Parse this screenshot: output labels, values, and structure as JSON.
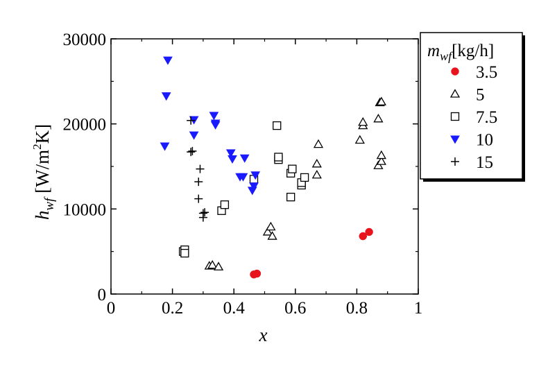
{
  "chart_data": {
    "type": "scatter",
    "title": "",
    "xlabel": "x",
    "ylabel": {
      "main": "h",
      "sub": "wf",
      "unit_open": "[W/m",
      "unit_sup": "2",
      "unit_close": "K]"
    },
    "xlim": [
      0,
      1
    ],
    "ylim": [
      0,
      30000
    ],
    "xticks": [
      0,
      0.2,
      0.4,
      0.6,
      0.8,
      1
    ],
    "xtick_labels": [
      "0",
      "0.2",
      "0.4",
      "0.6",
      "0.8",
      "1"
    ],
    "yticks": [
      0,
      10000,
      20000,
      30000
    ],
    "ytick_labels": [
      "0",
      "10000",
      "20000",
      "30000"
    ],
    "grid": false,
    "legend": {
      "placement": "right",
      "title_main": "m",
      "title_sub": "wf",
      "title_unit": "[kg/h]"
    },
    "series": [
      {
        "name": "3.5",
        "marker": "filled-circle",
        "color": "#e8141c",
        "points": [
          [
            0.465,
            2300
          ],
          [
            0.475,
            2400
          ],
          [
            0.82,
            6800
          ],
          [
            0.84,
            7300
          ]
        ]
      },
      {
        "name": "5",
        "marker": "open-triangle",
        "color": "#000000",
        "points": [
          [
            0.32,
            3300
          ],
          [
            0.33,
            3400
          ],
          [
            0.35,
            3200
          ],
          [
            0.51,
            7300
          ],
          [
            0.52,
            7900
          ],
          [
            0.525,
            6800
          ],
          [
            0.67,
            14000
          ],
          [
            0.67,
            15300
          ],
          [
            0.675,
            17600
          ],
          [
            0.81,
            18100
          ],
          [
            0.82,
            19800
          ],
          [
            0.82,
            20200
          ],
          [
            0.87,
            20600
          ],
          [
            0.875,
            22500
          ],
          [
            0.88,
            22600
          ],
          [
            0.87,
            15100
          ],
          [
            0.88,
            15600
          ],
          [
            0.88,
            16300
          ]
        ]
      },
      {
        "name": "7.5",
        "marker": "open-square",
        "color": "#000000",
        "points": [
          [
            0.235,
            5000
          ],
          [
            0.24,
            5200
          ],
          [
            0.24,
            4800
          ],
          [
            0.36,
            9800
          ],
          [
            0.37,
            10500
          ],
          [
            0.465,
            13500
          ],
          [
            0.54,
            19800
          ],
          [
            0.545,
            15800
          ],
          [
            0.545,
            16100
          ],
          [
            0.585,
            14200
          ],
          [
            0.59,
            14700
          ],
          [
            0.585,
            11400
          ],
          [
            0.62,
            12800
          ],
          [
            0.62,
            13100
          ],
          [
            0.63,
            13700
          ]
        ]
      },
      {
        "name": "10",
        "marker": "filled-triangle-down",
        "color": "#1a1aff",
        "points": [
          [
            0.175,
            17400
          ],
          [
            0.18,
            23300
          ],
          [
            0.185,
            27500
          ],
          [
            0.27,
            20500
          ],
          [
            0.27,
            18700
          ],
          [
            0.335,
            21000
          ],
          [
            0.34,
            19900
          ],
          [
            0.34,
            20100
          ],
          [
            0.39,
            16600
          ],
          [
            0.395,
            15900
          ],
          [
            0.42,
            13800
          ],
          [
            0.43,
            13800
          ],
          [
            0.435,
            16000
          ],
          [
            0.46,
            12200
          ],
          [
            0.465,
            12700
          ],
          [
            0.47,
            14000
          ]
        ]
      },
      {
        "name": "15",
        "marker": "plus",
        "color": "#000000",
        "points": [
          [
            0.26,
            20400
          ],
          [
            0.26,
            16700
          ],
          [
            0.265,
            16800
          ],
          [
            0.29,
            14700
          ],
          [
            0.285,
            13200
          ],
          [
            0.285,
            11200
          ],
          [
            0.3,
            9500
          ],
          [
            0.3,
            9000
          ],
          [
            0.305,
            9600
          ]
        ]
      }
    ]
  }
}
